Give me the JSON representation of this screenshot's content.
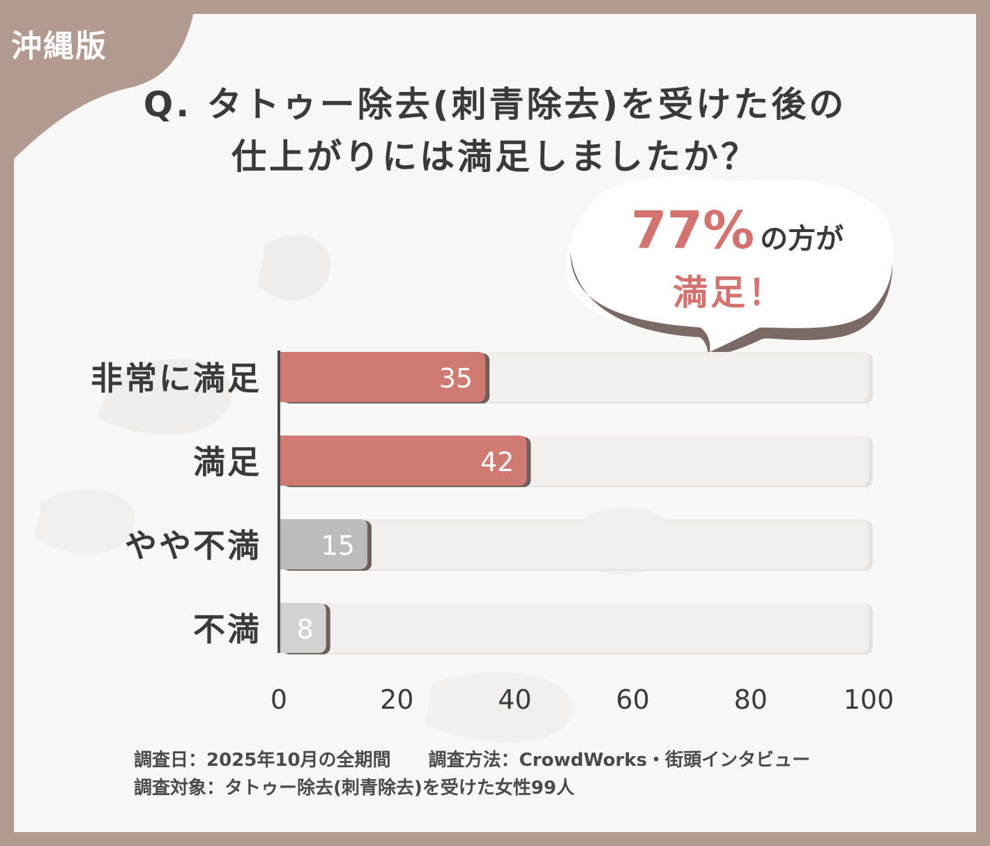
{
  "region_tag": "沖縄版",
  "question": {
    "line1": "Q. タトゥー除去(刺青除去)を受けた後の",
    "line2": "仕上がりには満足しましたか？"
  },
  "callout": {
    "percent": "77%",
    "tail": "の方が",
    "line2": "満足！"
  },
  "chart_data": {
    "type": "bar",
    "orientation": "horizontal",
    "categories": [
      "非常に満足",
      "満足",
      "やや不満",
      "不満"
    ],
    "values": [
      35,
      42,
      15,
      8
    ],
    "bar_colors": [
      "#d07a73",
      "#d07a73",
      "#bcbcbc",
      "#d2d2d2"
    ],
    "xlim": [
      0,
      100
    ],
    "xticks": [
      0,
      20,
      40,
      60,
      80,
      100
    ],
    "grid": false
  },
  "notes": {
    "date": "調査日：2025年10月の全期間",
    "method": "調査方法：CrowdWorks・街頭インタビュー",
    "target": "調査対象：タトゥー除去(刺青除去)を受けた女性99人"
  }
}
